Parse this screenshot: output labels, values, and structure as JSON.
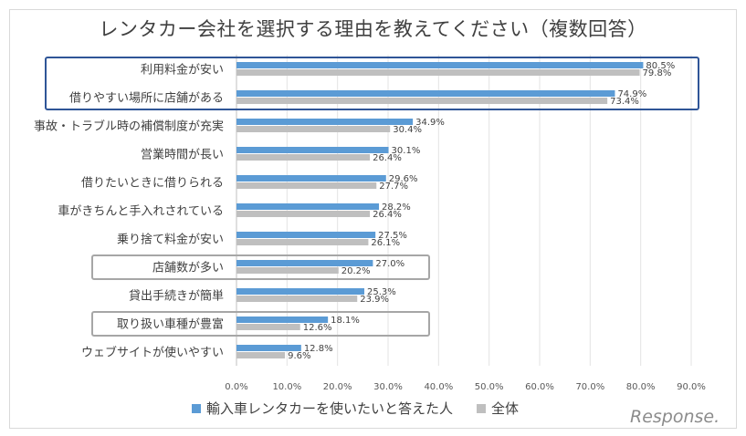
{
  "chart_data": {
    "type": "bar",
    "orientation": "horizontal",
    "title": "レンタカー会社を選択する理由を教えてください（複数回答）",
    "categories": [
      "利用料金が安い",
      "借りやすい場所に店舗がある",
      "事故・トラブル時の補償制度が充実",
      "営業時間が長い",
      "借りたいときに借りられる",
      "車がきちんと手入れされている",
      "乗り捨て料金が安い",
      "店舗数が多い",
      "貸出手続きが簡単",
      "取り扱い車種が豊富",
      "ウェブサイトが使いやすい"
    ],
    "series": [
      {
        "name": "輸入車レンタカーを使いたいと答えた人",
        "color": "#5b9bd5",
        "values": [
          80.5,
          74.9,
          34.9,
          30.1,
          29.6,
          28.2,
          27.5,
          27.0,
          25.3,
          18.1,
          12.8
        ],
        "labels": [
          "80.5%",
          "74.9%",
          "34.9%",
          "30.1%",
          "29.6%",
          "28.2%",
          "27.5%",
          "27.0%",
          "25.3%",
          "18.1%",
          "12.8%"
        ]
      },
      {
        "name": "全体",
        "color": "#bfbfbf",
        "values": [
          79.8,
          73.4,
          30.4,
          26.4,
          27.7,
          26.4,
          26.1,
          20.2,
          23.9,
          12.6,
          9.6
        ],
        "labels": [
          "79.8%",
          "73.4%",
          "30.4%",
          "26.4%",
          "27.7%",
          "26.4%",
          "26.1%",
          "20.2%",
          "23.9%",
          "12.6%",
          "9.6%"
        ]
      }
    ],
    "xlim": [
      0,
      90
    ],
    "ticks": [
      0,
      10,
      20,
      30,
      40,
      50,
      60,
      70,
      80,
      90
    ],
    "tick_labels": [
      "0.0%",
      "10.0%",
      "20.0%",
      "30.0%",
      "40.0%",
      "50.0%",
      "60.0%",
      "70.0%",
      "80.0%",
      "90.0%"
    ],
    "grid": true,
    "legend_position": "bottom",
    "highlight_groups": [
      {
        "categories": [
          0,
          1
        ],
        "color": "#2f5597"
      },
      {
        "categories": [
          7
        ],
        "color": "#a6a6a6"
      },
      {
        "categories": [
          9
        ],
        "color": "#a6a6a6"
      }
    ]
  },
  "watermark": "Response."
}
